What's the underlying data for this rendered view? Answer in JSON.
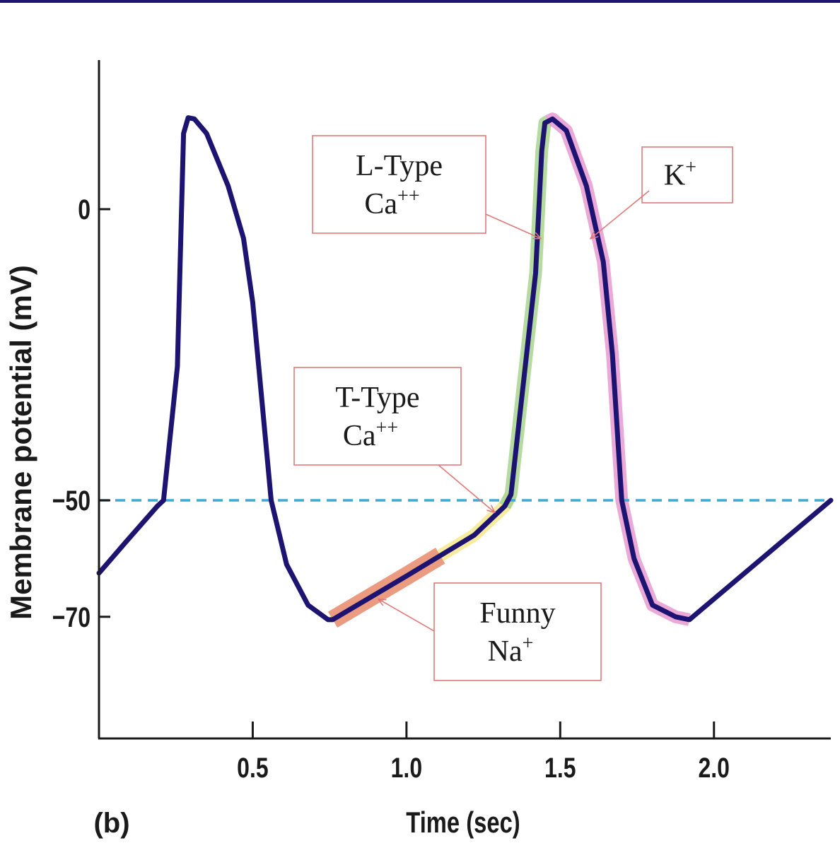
{
  "chart_data": {
    "type": "line",
    "panel_label": "(b)",
    "xlabel": "Time (sec)",
    "ylabel": "Membrane potential (mV)",
    "xlim": [
      0,
      2.38
    ],
    "ylim": [
      -90,
      25
    ],
    "x_ticks": [
      0.5,
      1.0,
      1.5,
      2.0
    ],
    "x_tick_labels": [
      "0.5",
      "1.0",
      "1.5",
      "2.0"
    ],
    "y_ticks": [
      0,
      -50,
      -70
    ],
    "y_tick_labels": [
      "0",
      "−50",
      "−70"
    ],
    "threshold": {
      "y": -50,
      "style": "dashed",
      "color": "#3fa9d6"
    },
    "series": [
      {
        "color": "#1c1470",
        "x": [
          0.0,
          0.09,
          0.19,
          0.21,
          0.255,
          0.275,
          0.29,
          0.31,
          0.35,
          0.42,
          0.47,
          0.5,
          0.53,
          0.56,
          0.61,
          0.68,
          0.745,
          0.76,
          1.0,
          1.22,
          1.32,
          1.34,
          1.42,
          1.44,
          1.45,
          1.475,
          1.52,
          1.585,
          1.64,
          1.67,
          1.7,
          1.74,
          1.8,
          1.875,
          1.92,
          2.38
        ],
        "y": [
          -62.5,
          -57,
          -51,
          -50,
          -27,
          13,
          15.7,
          15.5,
          13,
          4,
          -5,
          -16,
          -33,
          -50,
          -61,
          -68,
          -70.5,
          -70.5,
          -63,
          -56,
          -51,
          -49,
          -11,
          10,
          14.8,
          15.5,
          13.5,
          4,
          -9,
          -25,
          -50,
          -60,
          -68,
          -70,
          -70.5,
          -50
        ]
      }
    ],
    "highlights": [
      {
        "ion": "Funny Na+",
        "color": "#e8896a",
        "x_range": [
          0.76,
          1.11
        ]
      },
      {
        "ion": "T-Type Ca++",
        "color": "#f6e98c",
        "x_range": [
          1.11,
          1.34
        ]
      },
      {
        "ion": "L-Type Ca++",
        "color": "#a8d58f",
        "x_range": [
          1.32,
          1.46
        ]
      },
      {
        "ion": "K+",
        "color": "#e89ad0",
        "x_range": [
          1.46,
          1.92
        ]
      }
    ],
    "annotations": [
      {
        "id": "l-type",
        "lines": [
          {
            "text": "L-Type",
            "sup": ""
          },
          {
            "text": "Ca",
            "sup": "++"
          }
        ],
        "target": [
          1.435,
          -5
        ]
      },
      {
        "id": "k",
        "lines": [
          {
            "text": "K",
            "sup": "+"
          }
        ],
        "target": [
          1.6,
          -5
        ]
      },
      {
        "id": "t-type",
        "lines": [
          {
            "text": "T-Type",
            "sup": ""
          },
          {
            "text": "Ca",
            "sup": "++"
          }
        ],
        "target": [
          1.285,
          -52
        ]
      },
      {
        "id": "funny",
        "lines": [
          {
            "text": "Funny",
            "sup": ""
          },
          {
            "text": "Na",
            "sup": "+"
          }
        ],
        "target": [
          0.91,
          -67
        ]
      }
    ],
    "colors": {
      "line": "#1c1470",
      "axis": "#1a1a1a",
      "box_border": "#e07a7a",
      "arrow": "#e07a7a",
      "top_rule": "#1c1470"
    }
  }
}
